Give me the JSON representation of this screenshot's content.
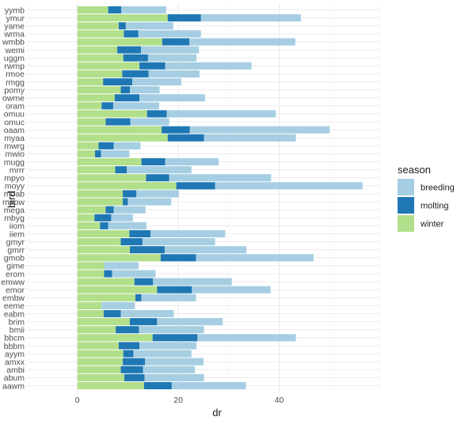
{
  "chart_data": {
    "type": "bar",
    "orientation": "horizontal",
    "stacked": true,
    "xlabel": "dr",
    "ylabel": "bird",
    "xlim": [
      -10,
      60
    ],
    "x_ticks": [
      0,
      20,
      40
    ],
    "grid": true,
    "legend": {
      "title": "season",
      "placement": "right"
    },
    "categories": [
      "yymb",
      "ymur",
      "yame",
      "wrma",
      "wmbb",
      "wemi",
      "uggm",
      "rwmp",
      "rmoe",
      "rmgg",
      "pomy",
      "owme",
      "oram",
      "omuu",
      "omuc",
      "oaam",
      "myaa",
      "mwrg",
      "mwio",
      "mugg",
      "mrrr",
      "mpyo",
      "moyy",
      "moab",
      "meow",
      "mega",
      "mbyg",
      "iiom",
      "iiem",
      "gmyr",
      "gmrr",
      "gmob",
      "gime",
      "erom",
      "emww",
      "emor",
      "embw",
      "eeme",
      "eabm",
      "brim",
      "bmii",
      "bbcm",
      "bbbm",
      "ayym",
      "amxx",
      "ambi",
      "abum",
      "aawm"
    ],
    "series": [
      {
        "name": "winter",
        "color": "#b2df8a",
        "values": [
          6.1,
          17.9,
          8.2,
          9.2,
          16.8,
          7.9,
          9.1,
          12.3,
          8.9,
          5.1,
          8.6,
          7.4,
          4.8,
          13.8,
          5.6,
          16.7,
          17.9,
          4.2,
          3.5,
          12.7,
          7.5,
          13.6,
          19.6,
          9.0,
          9.0,
          5.6,
          3.4,
          4.5,
          10.3,
          8.6,
          10.4,
          16.5,
          5.3,
          5.3,
          11.3,
          15.8,
          11.5,
          4.8,
          5.2,
          10.4,
          7.6,
          14.9,
          8.2,
          9.1,
          9.0,
          8.6,
          9.3,
          13.2
        ]
      },
      {
        "name": "molting",
        "color": "#1f78b4",
        "values": [
          2.6,
          6.6,
          1.4,
          2.9,
          5.4,
          4.7,
          4.9,
          5.1,
          5.2,
          5.8,
          1.8,
          4.9,
          2.3,
          3.9,
          4.9,
          5.6,
          7.2,
          3.0,
          1.2,
          4.7,
          2.3,
          4.6,
          7.7,
          2.7,
          1.0,
          1.6,
          3.3,
          1.6,
          4.2,
          4.3,
          6.9,
          7.0,
          0,
          1.6,
          3.7,
          6.9,
          1.2,
          0,
          3.4,
          5.4,
          4.6,
          8.9,
          4.1,
          2.0,
          4.4,
          4.4,
          4.0,
          5.5
        ]
      },
      {
        "name": "breeding",
        "color": "#a6cee3",
        "values": [
          8.9,
          19.8,
          9.4,
          12.4,
          21.0,
          11.5,
          9.6,
          17.1,
          10.1,
          9.7,
          5.9,
          13.0,
          9.1,
          21.6,
          7.7,
          27.7,
          18.2,
          5.3,
          5.6,
          10.6,
          12.8,
          20.2,
          29.2,
          8.4,
          8.6,
          6.3,
          4.3,
          7.6,
          14.8,
          14.4,
          16.2,
          23.3,
          6.8,
          8.6,
          15.6,
          15.6,
          10.8,
          6.6,
          10.5,
          13.0,
          12.9,
          19.5,
          11.3,
          11.5,
          11.6,
          10.3,
          11.8,
          14.7
        ]
      }
    ]
  }
}
